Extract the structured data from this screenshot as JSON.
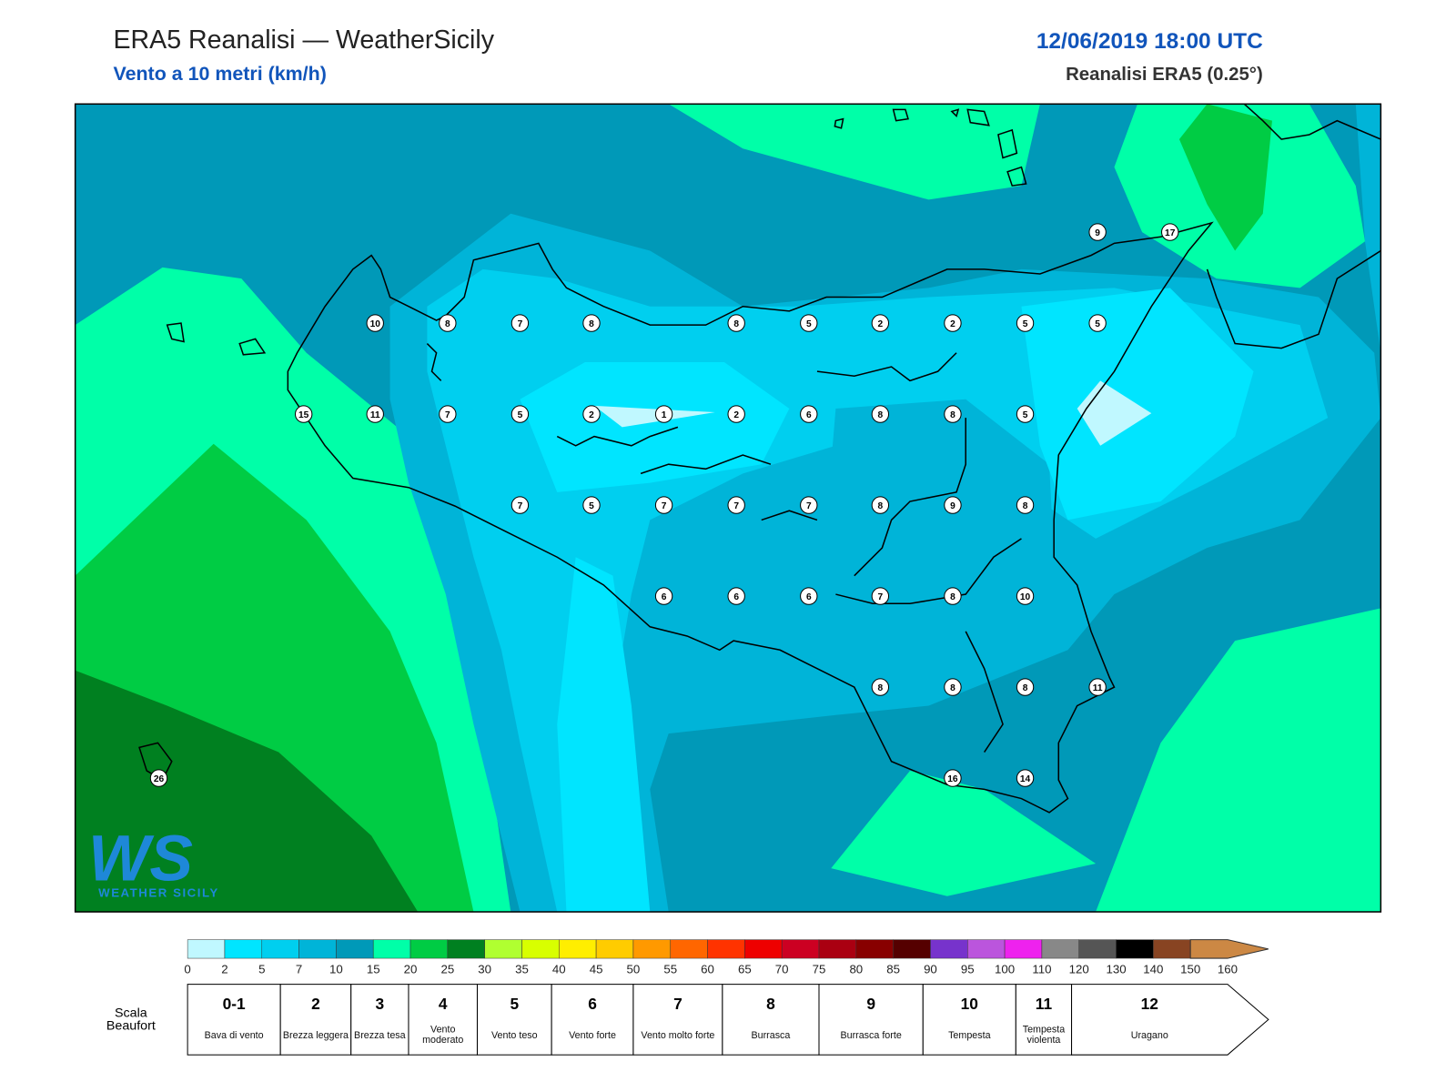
{
  "header": {
    "title": "ERA5 Reanalisi — WeatherSicily",
    "subtitle": "Vento a 10 metri (km/h)",
    "datetime": "12/06/2019 18:00 UTC",
    "source": "Reanalisi ERA5 (0.25°)"
  },
  "map": {
    "stations": [
      10,
      8,
      7,
      8,
      8,
      5,
      2,
      2,
      5,
      5,
      15,
      11,
      7,
      5,
      2,
      1,
      2,
      6,
      8,
      8,
      5,
      7,
      5,
      7,
      7,
      7,
      8,
      9,
      8,
      6,
      6,
      6,
      7,
      8,
      10,
      8,
      8,
      8,
      11,
      16,
      14,
      26,
      9,
      17
    ]
  },
  "legend": {
    "colorbar": {
      "ticks": [
        0,
        2,
        5,
        7,
        10,
        15,
        20,
        25,
        30,
        35,
        40,
        45,
        50,
        55,
        60,
        65,
        70,
        75,
        80,
        85,
        90,
        95,
        100,
        110,
        120,
        130,
        140,
        150,
        160
      ],
      "colors": [
        "#c0f8ff",
        "#00e5ff",
        "#00cfef",
        "#00b4d8",
        "#0099b8",
        "#00ffa8",
        "#00cc44",
        "#008020",
        "#b0ff30",
        "#d8ff00",
        "#ffee00",
        "#ffcc00",
        "#ff9900",
        "#ff6600",
        "#ff3300",
        "#ee0000",
        "#cc0022",
        "#aa0011",
        "#880000",
        "#550000",
        "#7733cc",
        "#bb55dd",
        "#ee22ee",
        "#888888",
        "#555555",
        "#000000",
        "#884422",
        "#cc8844"
      ]
    },
    "beaufort": {
      "title": "Scala Beaufort",
      "levels": [
        {
          "force": "0-1",
          "label": "Bava di vento"
        },
        {
          "force": "2",
          "label": "Brezza leggera"
        },
        {
          "force": "3",
          "label": "Brezza tesa"
        },
        {
          "force": "4",
          "label": "Vento moderato"
        },
        {
          "force": "5",
          "label": "Vento teso"
        },
        {
          "force": "6",
          "label": "Vento forte"
        },
        {
          "force": "7",
          "label": "Vento molto forte"
        },
        {
          "force": "8",
          "label": "Burrasca"
        },
        {
          "force": "9",
          "label": "Burrasca forte"
        },
        {
          "force": "10",
          "label": "Tempesta"
        },
        {
          "force": "11",
          "label": "Tempesta violenta"
        },
        {
          "force": "12",
          "label": "Uragano"
        }
      ]
    }
  },
  "logo": {
    "mark": "WS",
    "name": "Weather Sicily"
  }
}
